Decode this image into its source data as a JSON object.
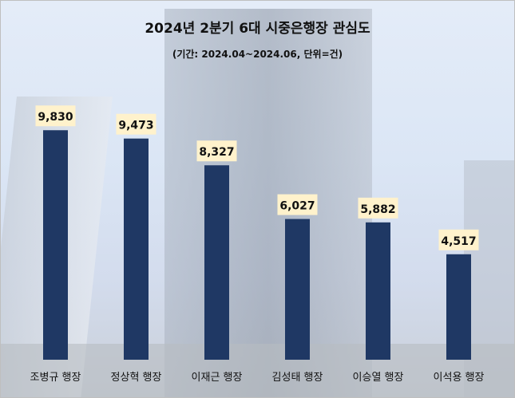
{
  "chart_data": {
    "type": "bar",
    "title": "2024년 2분기 6대 시중은행장 관심도",
    "subtitle": "(기간: 2024.04~2024.06, 단위=건)",
    "categories": [
      "조병규 행장",
      "정상혁 행장",
      "이재근 행장",
      "김성태 행장",
      "이승열 행장",
      "이석용 행장"
    ],
    "values": [
      9830,
      9473,
      8327,
      6027,
      5882,
      4517
    ],
    "value_labels": [
      "9,830",
      "9,473",
      "8,327",
      "6,027",
      "5,882",
      "4,517"
    ],
    "xlabel": "",
    "ylabel": "",
    "ylim": [
      0,
      11000
    ],
    "grid": false,
    "legend": "none",
    "colors": {
      "bar": "#1f3864",
      "label_bg": "#fff2cc"
    }
  }
}
